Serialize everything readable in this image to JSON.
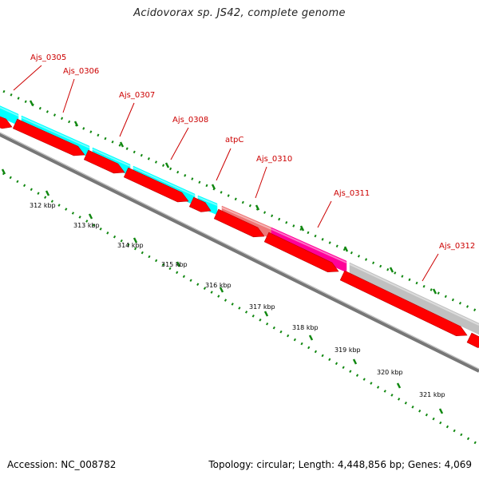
{
  "title": "Acidovorax sp. JS42, complete genome",
  "footer": {
    "accession": "Accession: NC_008782",
    "summary": "Topology: circular; Length: 4,448,856 bp; Genes: 4,069"
  },
  "colors": {
    "label": "#cc0000",
    "cds": "#ff0000",
    "tick": "#118811",
    "backbone": "#777777"
  },
  "kbp_labels": [
    "312 kbp",
    "313 kbp",
    "314 kbp",
    "315 kbp",
    "316 kbp",
    "317 kbp",
    "318 kbp",
    "319 kbp",
    "320 kbp",
    "321 kbp"
  ],
  "genes": [
    {
      "name": "Ajs_0305",
      "color": "#00ffff"
    },
    {
      "name": "Ajs_0306",
      "color": "#00ffff"
    },
    {
      "name": "Ajs_0307",
      "color": "#00ffff"
    },
    {
      "name": "Ajs_0308",
      "color": "#00ffff"
    },
    {
      "name": "atpC",
      "color": "#ee7777"
    },
    {
      "name": "Ajs_0310",
      "color": "#ff0099"
    },
    {
      "name": "Ajs_0311",
      "color": "#c0c0c0"
    },
    {
      "name": "Ajs_0312",
      "color": "#c0c0c0"
    }
  ]
}
